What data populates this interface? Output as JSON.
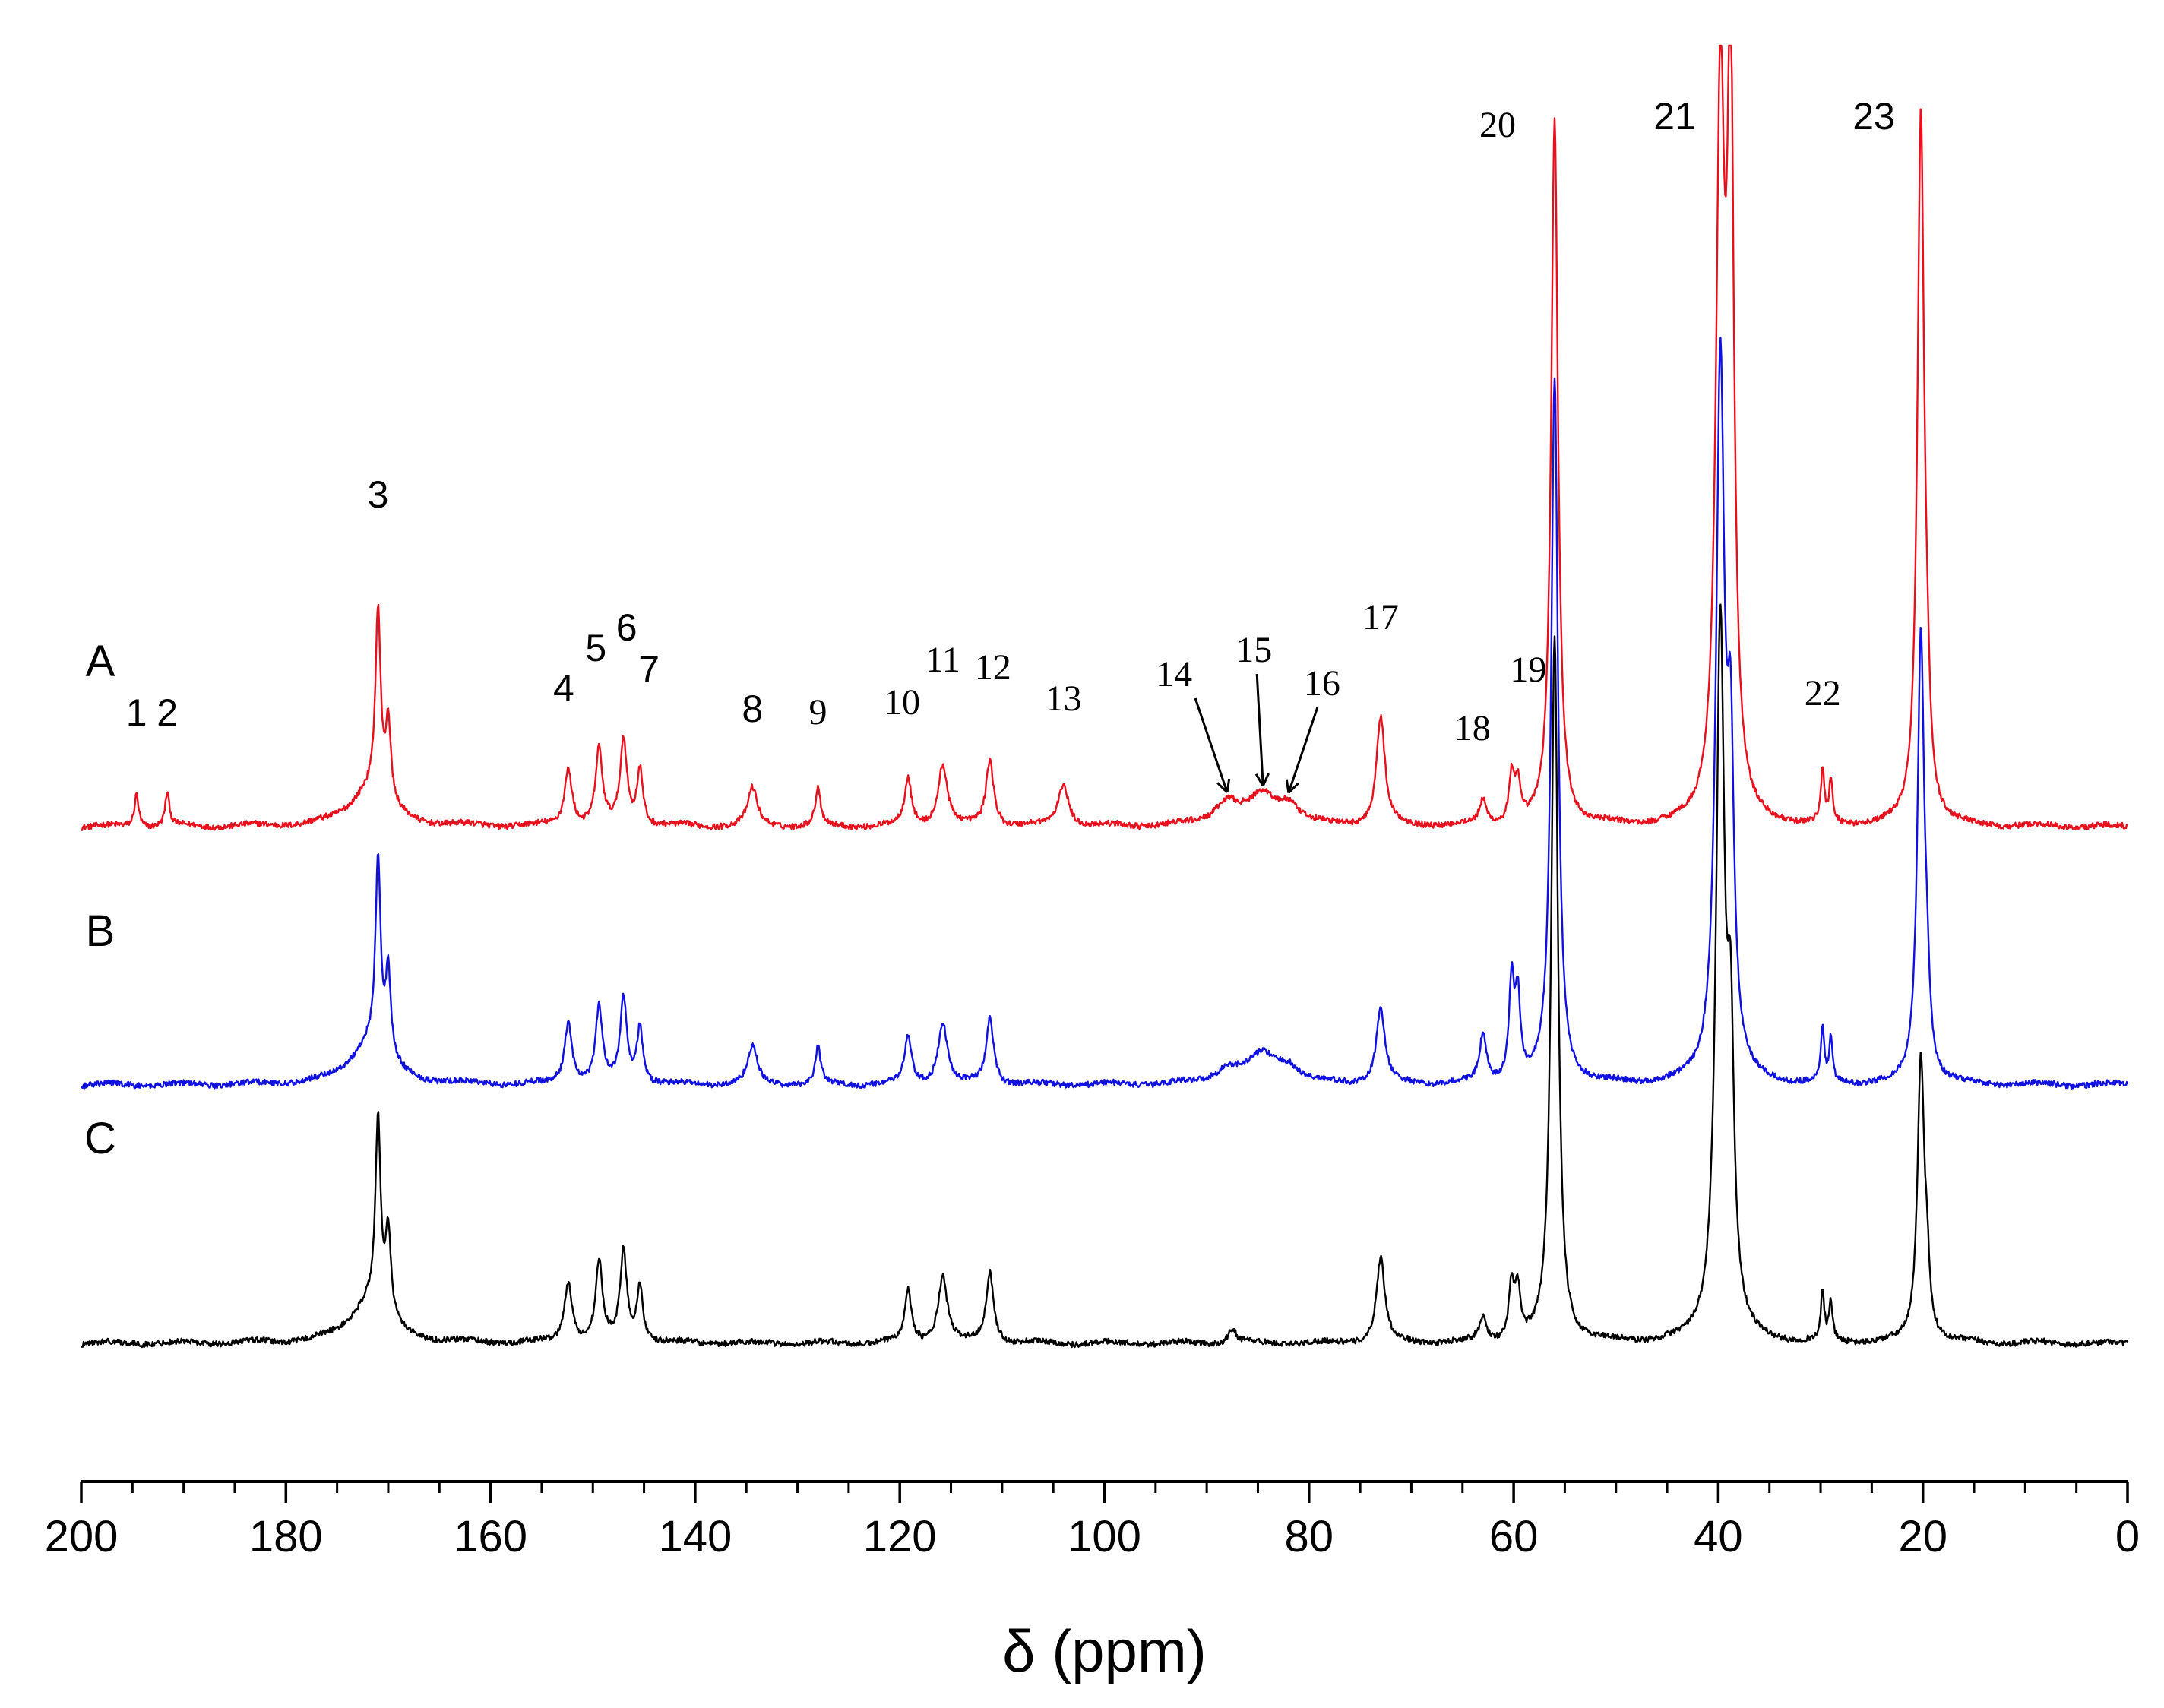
{
  "chart_data": {
    "type": "line",
    "title": "",
    "xlabel": "δ (ppm)",
    "ylabel": "",
    "xlim": [
      200,
      0
    ],
    "x_reversed": true,
    "grid": false,
    "x_ticks": [
      {
        "value": 200,
        "label": "200"
      },
      {
        "value": 180,
        "label": "180"
      },
      {
        "value": 160,
        "label": "160"
      },
      {
        "value": 140,
        "label": "140"
      },
      {
        "value": 120,
        "label": "120"
      },
      {
        "value": 100,
        "label": "100"
      },
      {
        "value": 80,
        "label": "80"
      },
      {
        "value": 60,
        "label": "60"
      },
      {
        "value": 40,
        "label": "40"
      },
      {
        "value": 20,
        "label": "20"
      },
      {
        "value": 0,
        "label": "0"
      }
    ],
    "x_minor_step": 5,
    "series": [
      {
        "name": "A",
        "color": "#e8101c",
        "baseline": 0,
        "noise": 0.6,
        "peaks": [
          {
            "ppm": 194.6,
            "h": 7,
            "w": 0.25
          },
          {
            "ppm": 191.6,
            "h": 7,
            "w": 0.25
          },
          {
            "ppm": 171.0,
            "h": 39,
            "w": 0.3
          },
          {
            "ppm": 170.0,
            "h": 17,
            "w": 0.3
          },
          {
            "ppm": 171.8,
            "h": 8,
            "w": 2.2
          },
          {
            "ppm": 152.4,
            "h": 12,
            "w": 0.45
          },
          {
            "ppm": 149.4,
            "h": 16,
            "w": 0.4
          },
          {
            "ppm": 147.0,
            "h": 18,
            "w": 0.4
          },
          {
            "ppm": 145.4,
            "h": 12,
            "w": 0.35
          },
          {
            "ppm": 134.4,
            "h": 8,
            "w": 0.55
          },
          {
            "ppm": 128.0,
            "h": 8,
            "w": 0.3
          },
          {
            "ppm": 119.2,
            "h": 10,
            "w": 0.4
          },
          {
            "ppm": 115.8,
            "h": 13,
            "w": 0.55
          },
          {
            "ppm": 111.2,
            "h": 14,
            "w": 0.45
          },
          {
            "ppm": 104.0,
            "h": 9,
            "w": 0.6
          },
          {
            "ppm": 88.0,
            "h": 5,
            "w": 1.5
          },
          {
            "ppm": 84.5,
            "h": 6,
            "w": 1.6
          },
          {
            "ppm": 82.0,
            "h": 4,
            "w": 1.2
          },
          {
            "ppm": 73.0,
            "h": 23,
            "w": 0.5
          },
          {
            "ppm": 63.0,
            "h": 5,
            "w": 0.4
          },
          {
            "ppm": 60.2,
            "h": 10,
            "w": 0.3
          },
          {
            "ppm": 59.6,
            "h": 8,
            "w": 0.3
          },
          {
            "ppm": 56.0,
            "h": 150,
            "w": 0.4
          },
          {
            "ppm": 39.8,
            "h": 150,
            "w": 0.5
          },
          {
            "ppm": 38.8,
            "h": 150,
            "w": 0.4
          },
          {
            "ppm": 29.8,
            "h": 11,
            "w": 0.2
          },
          {
            "ppm": 29.0,
            "h": 9,
            "w": 0.2
          },
          {
            "ppm": 20.2,
            "h": 150,
            "w": 0.4
          },
          {
            "ppm": 19.6,
            "h": 12,
            "w": 0.3
          }
        ]
      },
      {
        "name": "B",
        "color": "#1010e0",
        "baseline": 0,
        "noise": 0.6,
        "peaks": [
          {
            "ppm": 171.0,
            "h": 40,
            "w": 0.3
          },
          {
            "ppm": 170.0,
            "h": 18,
            "w": 0.3
          },
          {
            "ppm": 171.8,
            "h": 9,
            "w": 2.2
          },
          {
            "ppm": 152.4,
            "h": 13,
            "w": 0.45
          },
          {
            "ppm": 149.4,
            "h": 16,
            "w": 0.4
          },
          {
            "ppm": 147.0,
            "h": 18,
            "w": 0.4
          },
          {
            "ppm": 145.4,
            "h": 12,
            "w": 0.35
          },
          {
            "ppm": 134.4,
            "h": 8,
            "w": 0.55
          },
          {
            "ppm": 128.0,
            "h": 8,
            "w": 0.3
          },
          {
            "ppm": 119.2,
            "h": 10,
            "w": 0.4
          },
          {
            "ppm": 115.8,
            "h": 13,
            "w": 0.55
          },
          {
            "ppm": 111.2,
            "h": 14,
            "w": 0.45
          },
          {
            "ppm": 88.0,
            "h": 3,
            "w": 1.5
          },
          {
            "ppm": 84.5,
            "h": 6,
            "w": 1.8
          },
          {
            "ppm": 82.0,
            "h": 3,
            "w": 1.2
          },
          {
            "ppm": 73.0,
            "h": 16,
            "w": 0.5
          },
          {
            "ppm": 63.0,
            "h": 10,
            "w": 0.4
          },
          {
            "ppm": 60.2,
            "h": 21,
            "w": 0.3
          },
          {
            "ppm": 59.6,
            "h": 17,
            "w": 0.3
          },
          {
            "ppm": 56.0,
            "h": 150,
            "w": 0.4
          },
          {
            "ppm": 39.8,
            "h": 150,
            "w": 0.5
          },
          {
            "ppm": 38.8,
            "h": 60,
            "w": 0.4
          },
          {
            "ppm": 29.8,
            "h": 11,
            "w": 0.2
          },
          {
            "ppm": 29.0,
            "h": 9,
            "w": 0.2
          },
          {
            "ppm": 20.2,
            "h": 95,
            "w": 0.4
          },
          {
            "ppm": 19.6,
            "h": 12,
            "w": 0.3
          }
        ]
      },
      {
        "name": "C",
        "color": "#000000",
        "baseline": 0,
        "noise": 0.6,
        "peaks": [
          {
            "ppm": 171.0,
            "h": 40,
            "w": 0.3
          },
          {
            "ppm": 170.0,
            "h": 18,
            "w": 0.3
          },
          {
            "ppm": 171.8,
            "h": 9,
            "w": 2.2
          },
          {
            "ppm": 152.4,
            "h": 13,
            "w": 0.45
          },
          {
            "ppm": 149.4,
            "h": 17,
            "w": 0.4
          },
          {
            "ppm": 147.0,
            "h": 19,
            "w": 0.4
          },
          {
            "ppm": 145.4,
            "h": 12,
            "w": 0.35
          },
          {
            "ppm": 119.2,
            "h": 11,
            "w": 0.4
          },
          {
            "ppm": 115.8,
            "h": 14,
            "w": 0.55
          },
          {
            "ppm": 111.2,
            "h": 15,
            "w": 0.45
          },
          {
            "ppm": 87.5,
            "h": 3,
            "w": 0.5
          },
          {
            "ppm": 73.0,
            "h": 18,
            "w": 0.5
          },
          {
            "ppm": 63.0,
            "h": 5,
            "w": 0.4
          },
          {
            "ppm": 60.2,
            "h": 12,
            "w": 0.3
          },
          {
            "ppm": 59.6,
            "h": 10,
            "w": 0.3
          },
          {
            "ppm": 56.0,
            "h": 150,
            "w": 0.4
          },
          {
            "ppm": 39.8,
            "h": 150,
            "w": 0.5
          },
          {
            "ppm": 38.8,
            "h": 55,
            "w": 0.4
          },
          {
            "ppm": 29.8,
            "h": 10,
            "w": 0.2
          },
          {
            "ppm": 29.0,
            "h": 8,
            "w": 0.2
          },
          {
            "ppm": 20.2,
            "h": 60,
            "w": 0.4
          },
          {
            "ppm": 19.6,
            "h": 11,
            "w": 0.3
          }
        ]
      }
    ],
    "peak_labels": [
      {
        "text": "1",
        "ppm": 194.6,
        "style": "sans"
      },
      {
        "text": "2",
        "ppm": 191.6,
        "style": "sans"
      },
      {
        "text": "3",
        "ppm": 171.0,
        "style": "sans"
      },
      {
        "text": "4",
        "ppm": 152.4,
        "style": "sans"
      },
      {
        "text": "5",
        "ppm": 149.4,
        "style": "sans"
      },
      {
        "text": "6",
        "ppm": 147.0,
        "style": "sans"
      },
      {
        "text": "7",
        "ppm": 145.4,
        "style": "sans"
      },
      {
        "text": "8",
        "ppm": 134.4,
        "style": "sans"
      },
      {
        "text": "9",
        "ppm": 128.0,
        "style": "serif"
      },
      {
        "text": "10",
        "ppm": 119.2,
        "style": "serif"
      },
      {
        "text": "11",
        "ppm": 115.8,
        "style": "serif"
      },
      {
        "text": "12",
        "ppm": 111.2,
        "style": "serif"
      },
      {
        "text": "13",
        "ppm": 104.0,
        "style": "serif"
      },
      {
        "text": "14",
        "ppm": 88.0,
        "style": "serif",
        "arrow": true
      },
      {
        "text": "15",
        "ppm": 84.5,
        "style": "serif",
        "arrow": true
      },
      {
        "text": "16",
        "ppm": 82.0,
        "style": "serif",
        "arrow": true
      },
      {
        "text": "17",
        "ppm": 73.0,
        "style": "serif"
      },
      {
        "text": "18",
        "ppm": 63.0,
        "style": "serif"
      },
      {
        "text": "19",
        "ppm": 60.2,
        "style": "serif"
      },
      {
        "text": "20",
        "ppm": 56.0,
        "style": "serif"
      },
      {
        "text": "21",
        "ppm": 39.8,
        "style": "sans"
      },
      {
        "text": "22",
        "ppm": 29.8,
        "style": "serif"
      },
      {
        "text": "23",
        "ppm": 20.2,
        "style": "sans"
      }
    ]
  }
}
